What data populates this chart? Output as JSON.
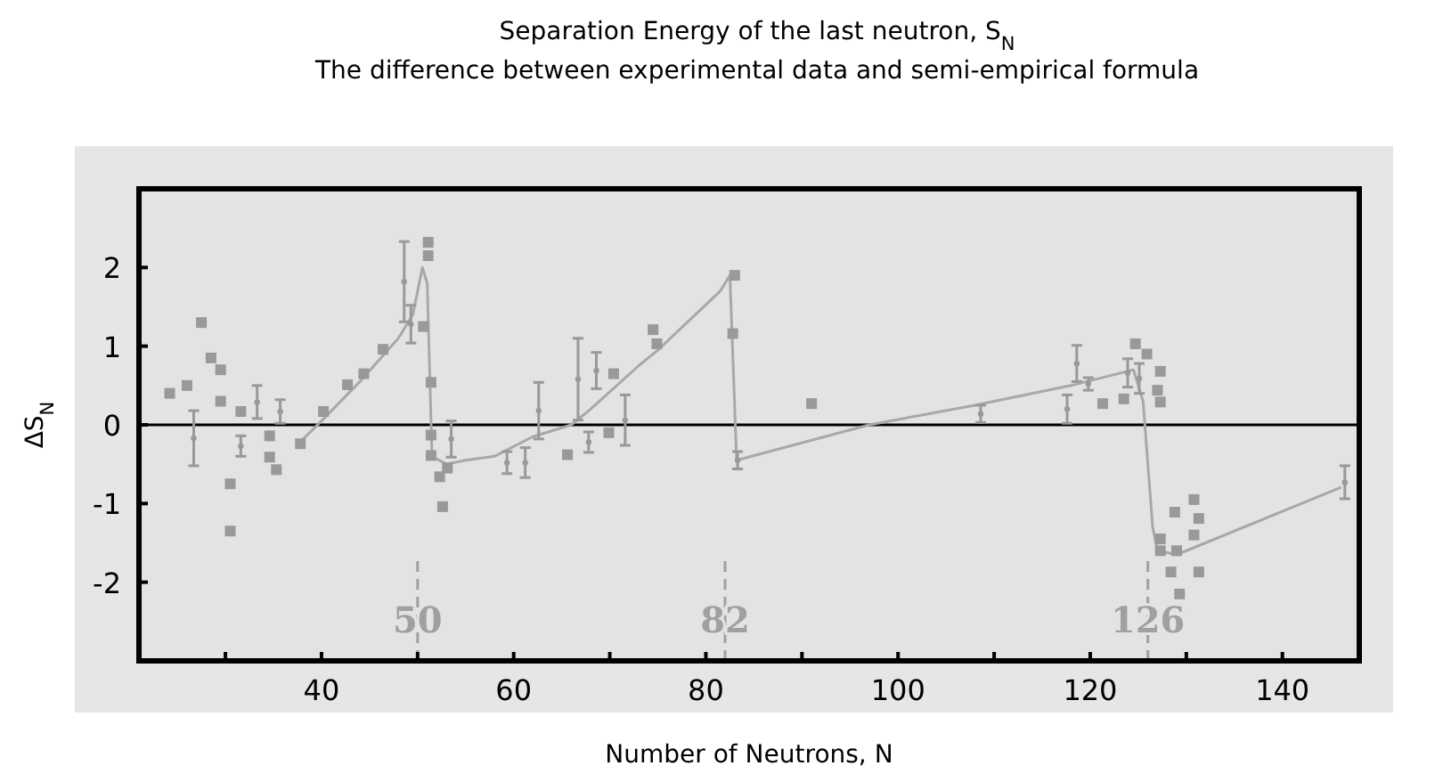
{
  "chart_data": {
    "type": "scatter",
    "title": "Separation Energy of the last neutron, S$_{N}$",
    "subtitle": "The difference between experimental data and semi-empirical formula",
    "xlabel": "Number of Neutrons, N",
    "ylabel": "ΔS$_{N}$",
    "xlim": [
      21,
      148
    ],
    "ylim": [
      -3,
      3
    ],
    "xticks": [
      {
        "value": 30,
        "label": null
      },
      40,
      {
        "value": 50,
        "label": null
      },
      60,
      {
        "value": 70,
        "label": null
      },
      80,
      {
        "value": 90,
        "label": null
      },
      100,
      {
        "value": 110,
        "label": null
      },
      120,
      {
        "value": 130,
        "label": null
      },
      140
    ],
    "yticks": [
      -2,
      -1,
      0,
      1,
      2
    ],
    "grid": false,
    "ref_lines": [
      {
        "axis": "y",
        "value": 0,
        "color": "#000000",
        "line_style": "solid"
      },
      {
        "axis": "x",
        "value": 50,
        "label": "50",
        "color": "#a0a0a0",
        "line_style": "dashed"
      },
      {
        "axis": "x",
        "value": 82,
        "label": "82",
        "color": "#a0a0a0",
        "line_style": "dashed"
      },
      {
        "axis": "x",
        "value": 126,
        "label": "126",
        "color": "#a0a0a0",
        "line_style": "dashed"
      }
    ],
    "series": [
      {
        "type": "line",
        "color": "#a8a8a8",
        "line_style": "solid",
        "marker": "none",
        "x": [
          37.5,
          40,
          44,
          48,
          49.5,
          50.5,
          51,
          51.5,
          53,
          55,
          58,
          62,
          66,
          68,
          73,
          75,
          81.5,
          82.5,
          83.2,
          97,
          108,
          118,
          124.5,
          125.5,
          126.5,
          127,
          129,
          146
        ],
        "values": [
          -0.25,
          0.05,
          0.55,
          1.1,
          1.4,
          2.0,
          1.8,
          -0.4,
          -0.5,
          -0.45,
          -0.4,
          -0.15,
          0.0,
          0.2,
          0.75,
          0.95,
          1.7,
          1.9,
          -0.45,
          0.0,
          0.25,
          0.5,
          0.7,
          0.3,
          -1.3,
          -1.6,
          -1.65,
          -0.8
        ]
      },
      {
        "color": "#999999",
        "marker": "square",
        "x": [
          24.2,
          26,
          27.5,
          28.5,
          29.5,
          29.5,
          30.5,
          30.5,
          31.6,
          34.6,
          34.6,
          35.3,
          37.8,
          40.2,
          42.7,
          44.4,
          46.4,
          50.6,
          51.1,
          51.1,
          51.4,
          51.4,
          51.4,
          52.3,
          53.1,
          52.6,
          65.6,
          69.9,
          70.4,
          74.5,
          74.9,
          83.0,
          82.8,
          91,
          121.3,
          123.5,
          124.7,
          125.9,
          127.3,
          127,
          127.3,
          127.3,
          129,
          128.4,
          129.3,
          128.8,
          130.8,
          131.3,
          130.8,
          131.3,
          127.3
        ],
        "values": [
          0.4,
          0.5,
          1.3,
          0.85,
          0.7,
          0.3,
          -0.75,
          -1.35,
          0.17,
          -0.14,
          -0.41,
          -0.57,
          -0.24,
          0.17,
          0.51,
          0.65,
          0.96,
          1.25,
          2.32,
          2.15,
          0.54,
          -0.13,
          -0.39,
          -0.66,
          -0.55,
          -1.04,
          -0.38,
          -0.1,
          0.65,
          1.21,
          1.03,
          1.9,
          1.16,
          0.27,
          0.27,
          0.33,
          1.03,
          0.9,
          0.68,
          0.44,
          0.29,
          -1.6,
          -1.6,
          -1.87,
          -2.15,
          -1.11,
          -0.95,
          -1.19,
          -1.4,
          -1.87,
          -1.45
        ]
      },
      {
        "color": "#999999",
        "marker": "circle",
        "x": [
          26.7,
          31.6,
          33.3,
          35.7,
          48.6,
          49.3,
          53.5,
          59.3,
          61.2,
          62.6,
          66.7,
          68.6,
          67.8,
          71.6,
          83.3,
          108.6,
          118.6,
          117.6,
          119.8,
          123.9,
          125.1,
          146.5
        ],
        "values": [
          -0.17,
          -0.27,
          0.29,
          0.17,
          1.82,
          1.28,
          -0.18,
          -0.48,
          -0.48,
          0.18,
          0.58,
          0.69,
          -0.22,
          0.06,
          -0.45,
          0.14,
          0.78,
          0.2,
          0.52,
          0.66,
          0.59,
          -0.73
        ],
        "errors": [
          0.35,
          0.13,
          0.21,
          0.15,
          0.51,
          0.24,
          0.23,
          0.14,
          0.19,
          0.36,
          0.52,
          0.23,
          0.13,
          0.32,
          0.11,
          0.11,
          0.23,
          0.18,
          0.08,
          0.18,
          0.19,
          0.21
        ]
      }
    ]
  }
}
